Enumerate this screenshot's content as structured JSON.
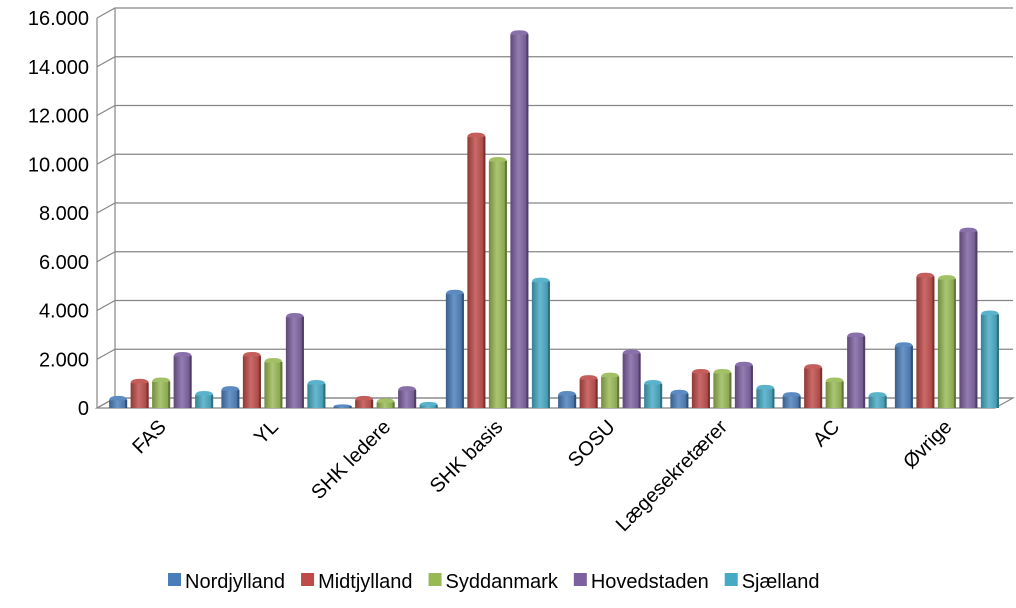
{
  "chart_data": {
    "type": "bar",
    "style": "3d-clustered-column",
    "title": "",
    "xlabel": "",
    "ylabel": "",
    "ylim": [
      0,
      16000
    ],
    "yticks": [
      0,
      2000,
      4000,
      6000,
      8000,
      10000,
      12000,
      14000,
      16000
    ],
    "ytick_labels": [
      "0",
      "2.000",
      "4.000",
      "6.000",
      "8.000",
      "10.000",
      "12.000",
      "14.000",
      "16.000"
    ],
    "grid": true,
    "legend_position": "bottom",
    "categories": [
      "FAS",
      "YL",
      "SHK ledere",
      "SHK basis",
      "SOSU",
      "Lægesekretærer",
      "AC",
      "Øvrige"
    ],
    "series": [
      {
        "name": "Nordjylland",
        "color": "#4A7EBB",
        "values": [
          500,
          900,
          150,
          4850,
          700,
          750,
          650,
          2700
        ]
      },
      {
        "name": "Midtjylland",
        "color": "#BE4B48",
        "values": [
          1200,
          2300,
          500,
          11300,
          1350,
          1600,
          1800,
          5550
        ]
      },
      {
        "name": "Syddanmark",
        "color": "#98B954",
        "values": [
          1250,
          2050,
          400,
          10300,
          1450,
          1600,
          1250,
          5450
        ]
      },
      {
        "name": "Hovedstaden",
        "color": "#7D60A0",
        "values": [
          2300,
          3900,
          900,
          15500,
          2400,
          1900,
          3100,
          7400
        ]
      },
      {
        "name": "Sjælland",
        "color": "#46AAC5",
        "values": [
          700,
          1150,
          250,
          5350,
          1150,
          950,
          650,
          4000
        ]
      }
    ]
  }
}
